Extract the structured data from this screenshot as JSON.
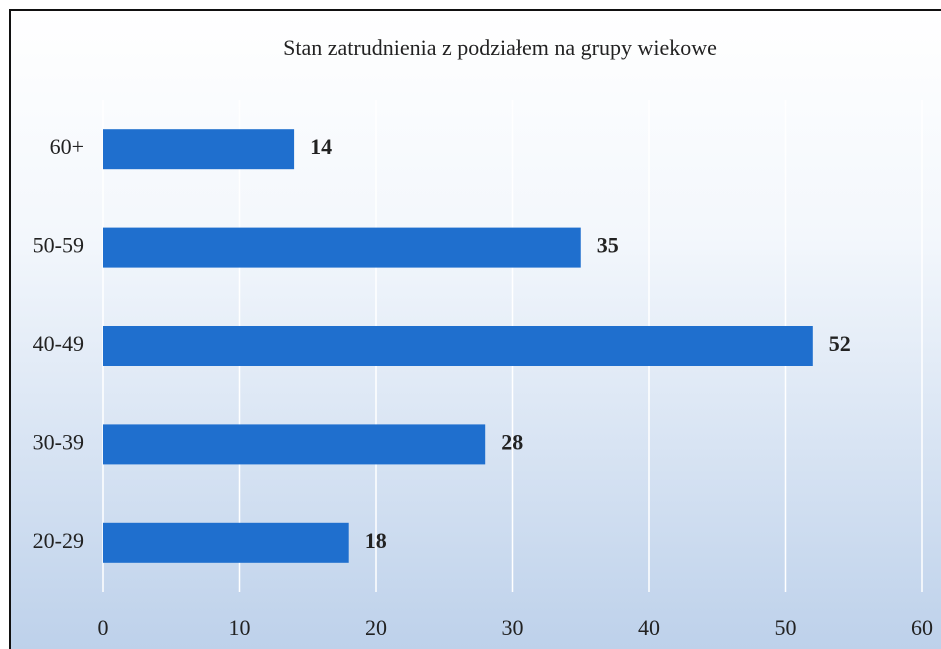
{
  "chart_data": {
    "type": "bar",
    "orientation": "horizontal",
    "title": "Stan zatrudnienia z podziałem na grupy wiekowe",
    "categories": [
      "20-29",
      "30-39",
      "40-49",
      "50-59",
      "60+"
    ],
    "values": [
      18,
      28,
      52,
      35,
      14
    ],
    "color": "#1f6fce",
    "xlim": [
      0,
      60
    ],
    "xticks": [
      0,
      10,
      20,
      30,
      40,
      50,
      60
    ],
    "grid": true
  }
}
